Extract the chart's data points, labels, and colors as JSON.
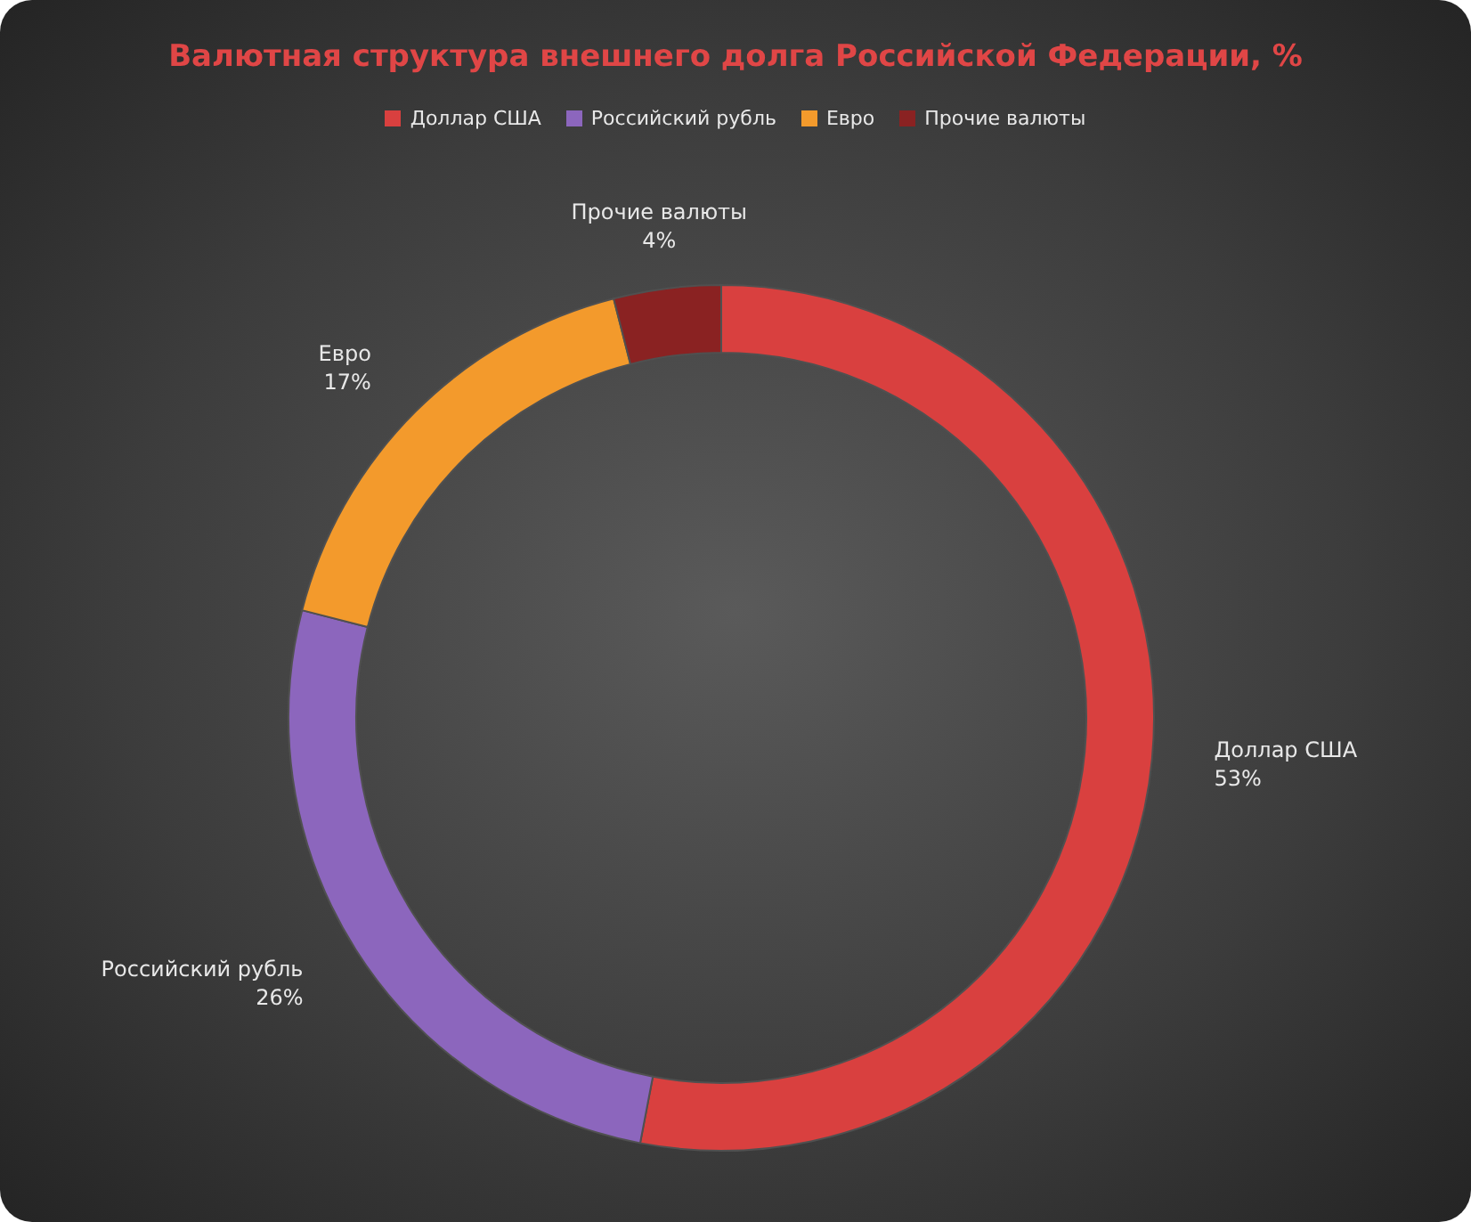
{
  "chart_data": {
    "type": "donut",
    "title": "Валютная структура внешнего долга Российской Федерации, %",
    "categories": [
      "Доллар США",
      "Российский рубль",
      "Евро",
      "Прочие валюты"
    ],
    "values": [
      53,
      26,
      17,
      4
    ],
    "colors": [
      "#d9403f",
      "#8c66bd",
      "#f39a2c",
      "#8a2222"
    ],
    "value_labels": [
      "53%",
      "26%",
      "17%",
      "4%"
    ],
    "legend": "top"
  }
}
